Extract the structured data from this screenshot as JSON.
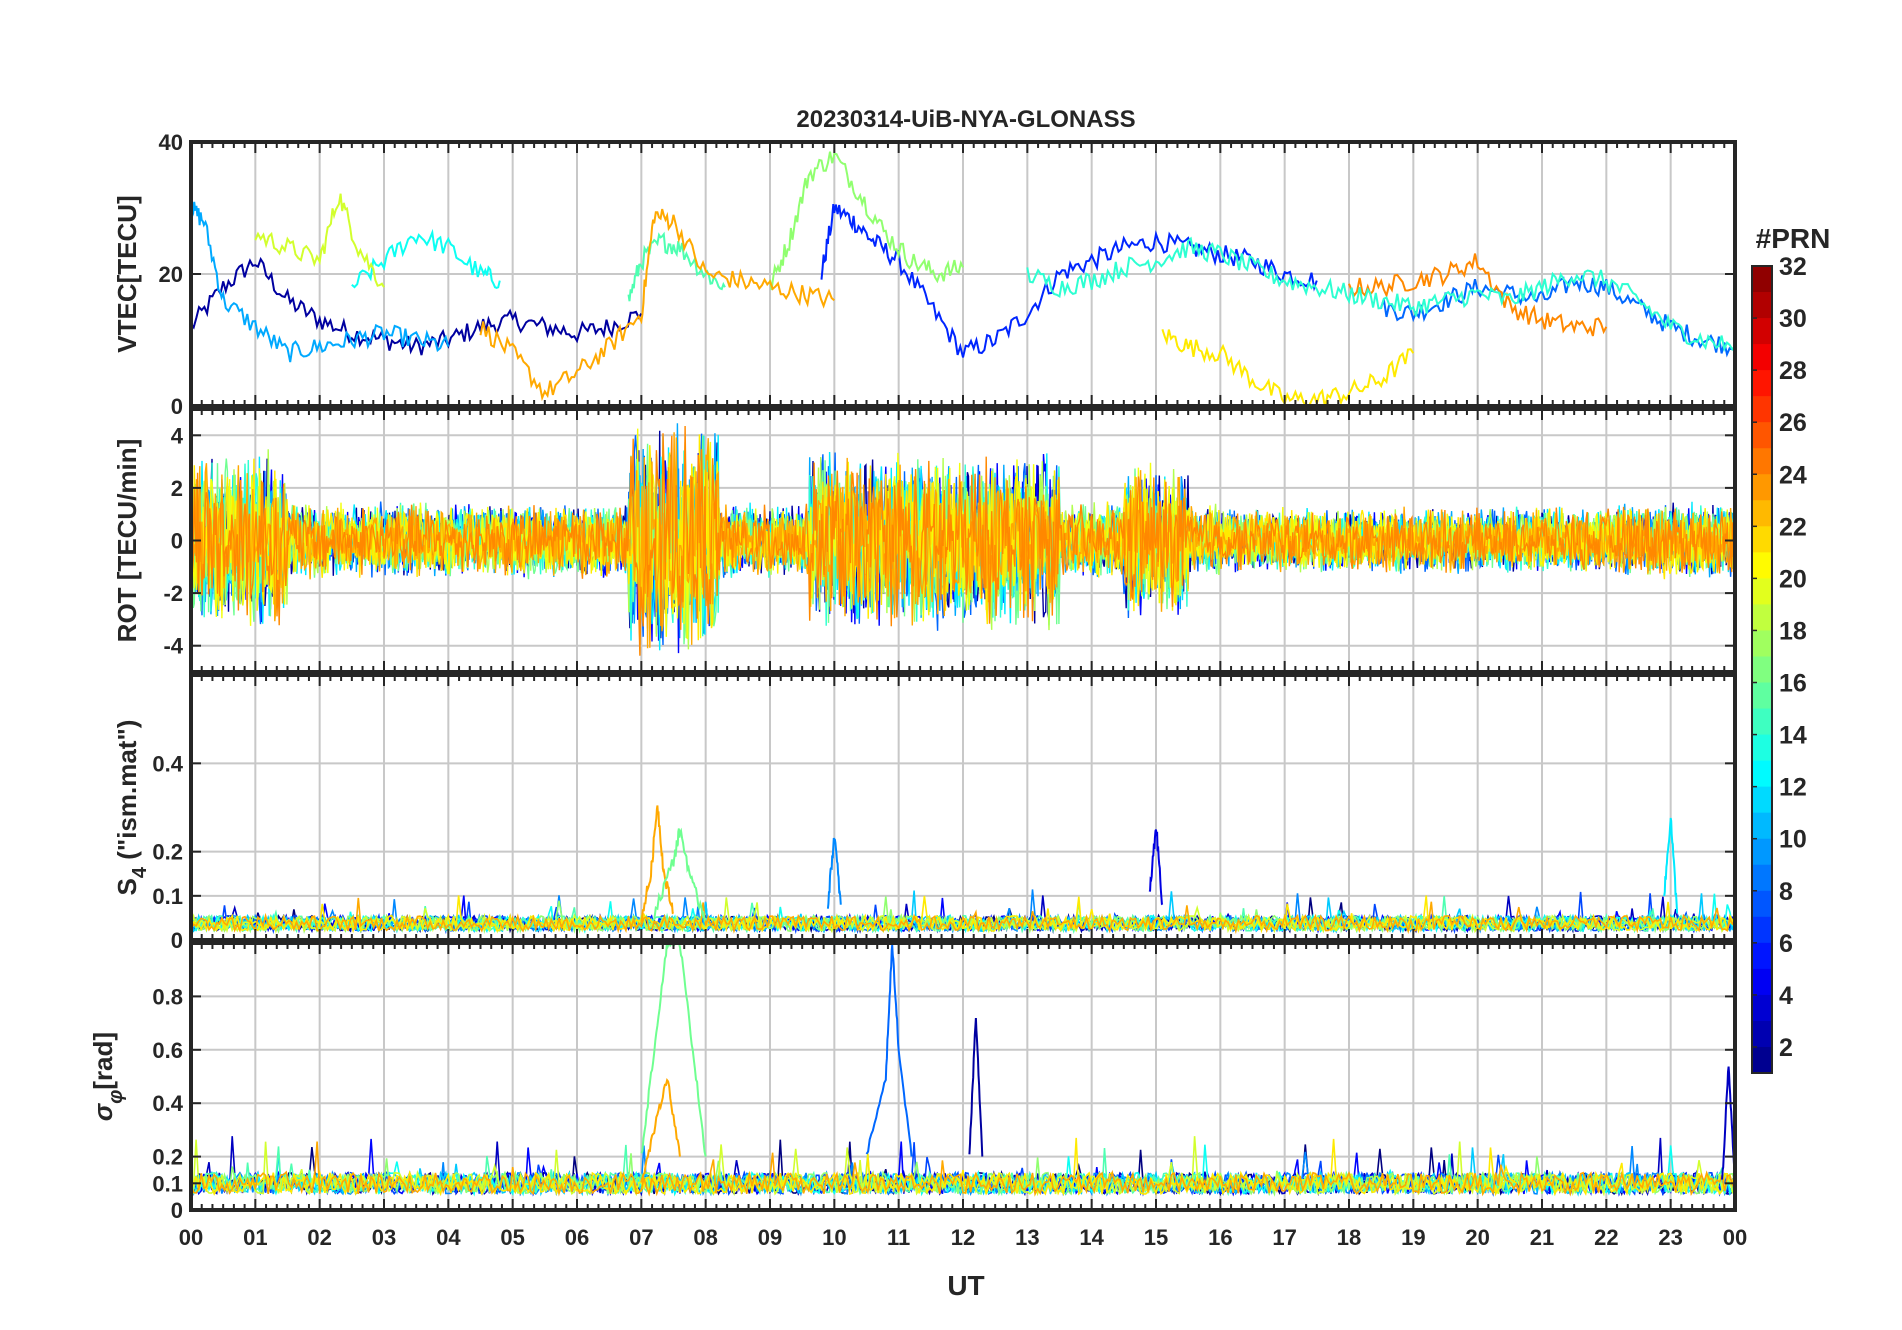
{
  "chart_data": {
    "type": "line",
    "title": "20230314-UiB-NYA-GLONASS",
    "xlabel": "UT",
    "x_ticks": [
      "00",
      "01",
      "02",
      "03",
      "04",
      "05",
      "06",
      "07",
      "08",
      "09",
      "10",
      "11",
      "12",
      "13",
      "14",
      "15",
      "16",
      "17",
      "18",
      "19",
      "20",
      "21",
      "22",
      "23",
      "00"
    ],
    "xlim": [
      0,
      24
    ],
    "color_by": "PRN",
    "colorbar": {
      "label": "#PRN",
      "range": [
        1,
        32
      ],
      "ticks": [
        2,
        4,
        6,
        8,
        10,
        12,
        14,
        16,
        18,
        20,
        22,
        24,
        26,
        28,
        30,
        32
      ],
      "colormap": "jet"
    },
    "panels": [
      {
        "ylabel": "VTEC[TECU]",
        "ylim": [
          0,
          40
        ],
        "yticks": [
          0,
          20,
          40
        ],
        "series": [
          {
            "prn": 2,
            "x": [
              0,
              0.5,
              1,
              1.5,
              2,
              2.5,
              3,
              3.5,
              4,
              4.5,
              5,
              5.5,
              6,
              6.5,
              7
            ],
            "y": [
              12,
              18,
              22,
              16,
              13,
              11,
              10,
              9,
              10,
              12,
              13,
              12,
              11,
              12,
              14
            ]
          },
          {
            "prn": 6,
            "x": [
              9.8,
              10,
              10.3,
              10.6,
              11,
              11.5,
              12,
              12.5,
              13,
              13.5,
              14,
              14.5,
              15,
              15.5,
              16,
              16.5,
              17,
              17.5
            ],
            "y": [
              20,
              30,
              28,
              25,
              22,
              15,
              8,
              10,
              14,
              20,
              22,
              24,
              25,
              24,
              23,
              22,
              20,
              19
            ]
          },
          {
            "prn": 8,
            "x": [
              18.5,
              19,
              19.5,
              20,
              20.5,
              21,
              21.5,
              22,
              22.5,
              23,
              23.5,
              24
            ],
            "y": [
              15,
              14,
              16,
              18,
              17,
              16,
              19,
              18,
              15,
              12,
              10,
              9
            ]
          },
          {
            "prn": 10,
            "x": [
              0,
              0.2,
              0.5,
              1,
              1.5,
              2,
              2.5,
              3,
              3.5,
              4
            ],
            "y": [
              30,
              28,
              16,
              12,
              8,
              9,
              10,
              11,
              10,
              9
            ]
          },
          {
            "prn": 13,
            "x": [
              2.5,
              3,
              3.5,
              4,
              4.5,
              4.8
            ],
            "y": [
              18,
              22,
              26,
              24,
              20,
              19
            ]
          },
          {
            "prn": 15,
            "x": [
              6.8,
              7,
              7.3,
              7.6,
              8,
              8.3
            ],
            "y": [
              16,
              22,
              25,
              24,
              20,
              18
            ]
          },
          {
            "prn": 17,
            "x": [
              9,
              9.3,
              9.6,
              10,
              10.4,
              10.8,
              11.2,
              11.6,
              12
            ],
            "y": [
              18,
              25,
              35,
              38,
              32,
              26,
              22,
              20,
              21
            ]
          },
          {
            "prn": 19,
            "x": [
              1,
              1.5,
              2,
              2.3,
              2.6,
              3
            ],
            "y": [
              26,
              24,
              22,
              32,
              24,
              18
            ]
          },
          {
            "prn": 23,
            "x": [
              4.5,
              5,
              5.5,
              6,
              6.5,
              7,
              7.2,
              7.5,
              8,
              8.5,
              9,
              9.5,
              10
            ],
            "y": [
              12,
              8,
              2,
              5,
              9,
              14,
              29,
              28,
              20,
              19,
              18,
              17,
              16
            ]
          },
          {
            "prn": 21,
            "x": [
              15.1,
              15.5,
              16,
              16.5,
              17,
              17.5,
              18,
              18.5,
              19
            ],
            "y": [
              11,
              9,
              8,
              4,
              1,
              1,
              2,
              4,
              8
            ]
          },
          {
            "prn": 24,
            "x": [
              18,
              18.5,
              19,
              19.5,
              20,
              20.5,
              21,
              21.5,
              22
            ],
            "y": [
              18,
              18,
              19,
              20,
              22,
              15,
              13,
              12,
              12
            ]
          },
          {
            "prn": 14,
            "x": [
              13,
              13.5,
              14,
              14.5,
              15,
              15.5,
              16,
              16.5,
              17,
              17.5,
              18,
              18.5,
              19,
              19.5,
              20,
              20.5,
              21,
              21.5,
              22,
              22.5,
              23,
              23.5,
              24
            ],
            "y": [
              20,
              18,
              19,
              21,
              22,
              24,
              23,
              21,
              19,
              18,
              17,
              16,
              15,
              16,
              17,
              16,
              18,
              20,
              19,
              16,
              12,
              10,
              9
            ]
          }
        ]
      },
      {
        "ylabel": "ROT [TECU/min]",
        "ylim": [
          -5,
          5
        ],
        "yticks": [
          -4,
          -2,
          0,
          2,
          4
        ],
        "note": "dense high-frequency oscillations around 0; amplitude largest 00-01, 07-08, 10-12 UT"
      },
      {
        "ylabel": "S4 (\"ism.mat\")",
        "ylabel_main": "S",
        "ylabel_sub": "4",
        "ylabel_rest": "  (\"ism.mat\")",
        "ylim": [
          0,
          0.6
        ],
        "yticks": [
          0,
          0.1,
          0.2,
          0.4
        ],
        "series": [
          {
            "prn": 23,
            "x": [
              7,
              7.15,
              7.25,
              7.35,
              7.5
            ],
            "y": [
              0.05,
              0.15,
              0.31,
              0.15,
              0.06
            ]
          },
          {
            "prn": 16,
            "x": [
              7.2,
              7.5,
              7.6,
              7.8,
              8
            ],
            "y": [
              0.06,
              0.18,
              0.25,
              0.12,
              0.05
            ]
          },
          {
            "prn": 9,
            "x": [
              9.9,
              10,
              10.1
            ],
            "y": [
              0.08,
              0.24,
              0.08
            ]
          },
          {
            "prn": 4,
            "x": [
              14.9,
              15,
              15.1
            ],
            "y": [
              0.1,
              0.26,
              0.08
            ]
          },
          {
            "prn": 12,
            "x": [
              22.9,
              23,
              23.1
            ],
            "y": [
              0.1,
              0.28,
              0.06
            ]
          }
        ]
      },
      {
        "ylabel": "σφ[rad]",
        "ylabel_main": "σ",
        "ylabel_sub": "φ",
        "ylabel_rest": "[rad]",
        "ylim": [
          0,
          1
        ],
        "yticks": [
          0,
          0.1,
          0.2,
          0.4,
          0.6,
          0.8
        ],
        "series": [
          {
            "prn": 16,
            "x": [
              7,
              7.2,
              7.4,
              7.6,
              7.8,
              8
            ],
            "y": [
              0.2,
              0.6,
              1.0,
              1.0,
              0.6,
              0.2
            ]
          },
          {
            "prn": 23,
            "x": [
              7,
              7.2,
              7.4,
              7.6
            ],
            "y": [
              0.1,
              0.3,
              0.5,
              0.2
            ]
          },
          {
            "prn": 8,
            "x": [
              10.5,
              10.8,
              10.9,
              11,
              11.2
            ],
            "y": [
              0.2,
              0.5,
              1.0,
              0.6,
              0.2
            ]
          },
          {
            "prn": 2,
            "x": [
              12.1,
              12.2,
              12.3
            ],
            "y": [
              0.2,
              0.73,
              0.2
            ]
          },
          {
            "prn": 3,
            "x": [
              23.8,
              23.9,
              24
            ],
            "y": [
              0.1,
              0.55,
              0.1
            ]
          }
        ]
      }
    ]
  }
}
